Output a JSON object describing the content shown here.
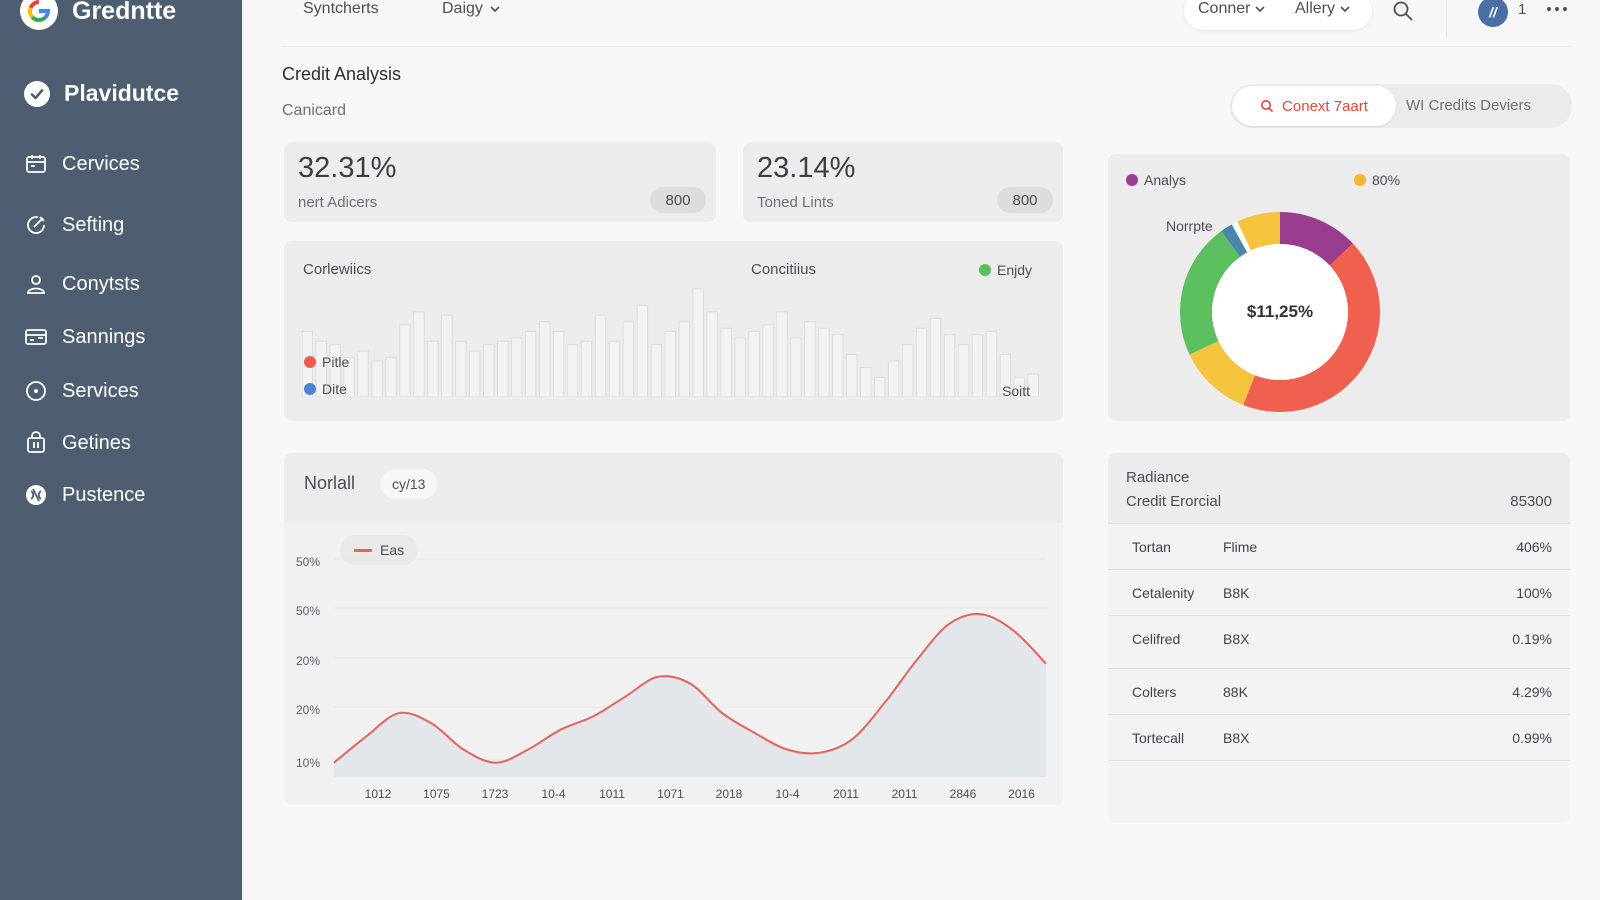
{
  "app": {
    "name": "Gredntte"
  },
  "workspace": {
    "name": "Plavidutce"
  },
  "sidebar": {
    "items": [
      {
        "label": "Cervices",
        "icon": "calendar-icon"
      },
      {
        "label": "Sefting",
        "icon": "edit-circle-icon"
      },
      {
        "label": "Conytsts",
        "icon": "user-icon"
      },
      {
        "label": "Sannings",
        "icon": "card-icon"
      },
      {
        "label": "Services",
        "icon": "clock-icon"
      },
      {
        "label": "Getines",
        "icon": "bag-icon"
      },
      {
        "label": "Pustence",
        "icon": "globe-icon"
      }
    ]
  },
  "topbar": {
    "tab1": "Syntcherts",
    "tab2": "Daigy",
    "dropdown1": "Conner",
    "dropdown2": "Allery",
    "avatar_glyph": "//",
    "count": "1"
  },
  "header": {
    "title": "Credit Analysis",
    "subtitle": "Canicard",
    "seg_active": "Conext 7aart",
    "seg_other": "WI Credits Deviers"
  },
  "stats": [
    {
      "value": "32.31%",
      "label": "nert Adicers",
      "badge": "800"
    },
    {
      "value": "23.14%",
      "label": "Toned Lints",
      "badge": "800"
    }
  ],
  "bar_panel": {
    "title": "Corlewiics",
    "mid_label": "Concitiius",
    "legend_top": "Enjdy",
    "legend_a": "Pitle",
    "legend_b": "Dite",
    "corner_label": "Soitt",
    "colors": {
      "top": "#5cbf5f",
      "a": "#ee5a4e",
      "b": "#4a86d0"
    }
  },
  "donut_panel": {
    "legend_1": "Analys",
    "legend_2": "80%",
    "annotation": "Norrpte",
    "center_label": "$11,25%",
    "colors": {
      "legend_1": "#9b3d8f",
      "legend_2": "#f5b731"
    }
  },
  "line_panel": {
    "title": "Norlall",
    "chip": "cy/13",
    "legend": "Eas",
    "color": "#e4635a"
  },
  "table_panel": {
    "title": "Radiance",
    "subtitle": "Credit Erorcial",
    "total": "85300",
    "rows": [
      {
        "name": "Tortan",
        "type": "Flime",
        "value": "406%"
      },
      {
        "name": "Cetalenity",
        "type": "B8K",
        "value": "100%"
      },
      {
        "name": "Celifred",
        "type": "B8X",
        "value": "0.19%"
      },
      {
        "name": "Colters",
        "type": "88K",
        "value": "4.29%"
      },
      {
        "name": "Tortecall",
        "type": "B8X",
        "value": "0.99%"
      }
    ]
  },
  "chart_data": [
    {
      "type": "bar",
      "values": [
        20,
        17,
        16,
        12,
        14,
        11,
        12,
        22,
        26,
        17,
        25,
        17,
        14,
        16,
        17,
        18,
        20,
        23,
        20,
        16,
        17,
        25,
        17,
        23,
        28,
        16,
        20,
        23,
        33,
        26,
        21,
        18,
        20,
        22,
        26,
        18,
        23,
        21,
        19,
        13,
        9,
        6,
        11,
        16,
        21,
        24,
        19,
        16,
        19,
        20,
        13,
        6,
        7
      ],
      "title": "",
      "xlabel": "",
      "ylabel": ""
    },
    {
      "type": "pie",
      "center_label": "$11,25%",
      "slices": [
        {
          "name": "purple",
          "value": 13,
          "color": "#9b3d8f"
        },
        {
          "name": "red",
          "value": 43,
          "color": "#f0604f"
        },
        {
          "name": "yellow",
          "value": 12,
          "color": "#f5c33e"
        },
        {
          "name": "green",
          "value": 22,
          "color": "#5cbf5f"
        },
        {
          "name": "blue",
          "value": 2,
          "color": "#4a86a8"
        },
        {
          "name": "white",
          "value": 1,
          "color": "#ffffff"
        },
        {
          "name": "yellow-top",
          "value": 7,
          "color": "#f5c33e"
        }
      ]
    },
    {
      "type": "area",
      "series": [
        {
          "name": "Eas",
          "values": [
            12.6,
            17.4,
            21.6,
            19.8,
            15.0,
            12.6,
            15.0,
            18.6,
            21.0,
            24.6,
            28.2,
            27.0,
            21.6,
            18.0,
            15.0,
            14.4,
            16.8,
            23.4,
            31.2,
            37.8,
            39.6,
            36.6,
            30.6
          ]
        }
      ],
      "y_ticks": [
        "50%",
        "50%",
        "20%",
        "20%",
        "10%"
      ],
      "x_ticks": [
        "1012",
        "1075",
        "1723",
        "10-4",
        "1011",
        "1071",
        "2018",
        "10-4",
        "2011",
        "2011",
        "2846",
        "2016"
      ],
      "ylim": [
        10,
        50
      ],
      "title": "",
      "xlabel": "",
      "ylabel": ""
    }
  ]
}
